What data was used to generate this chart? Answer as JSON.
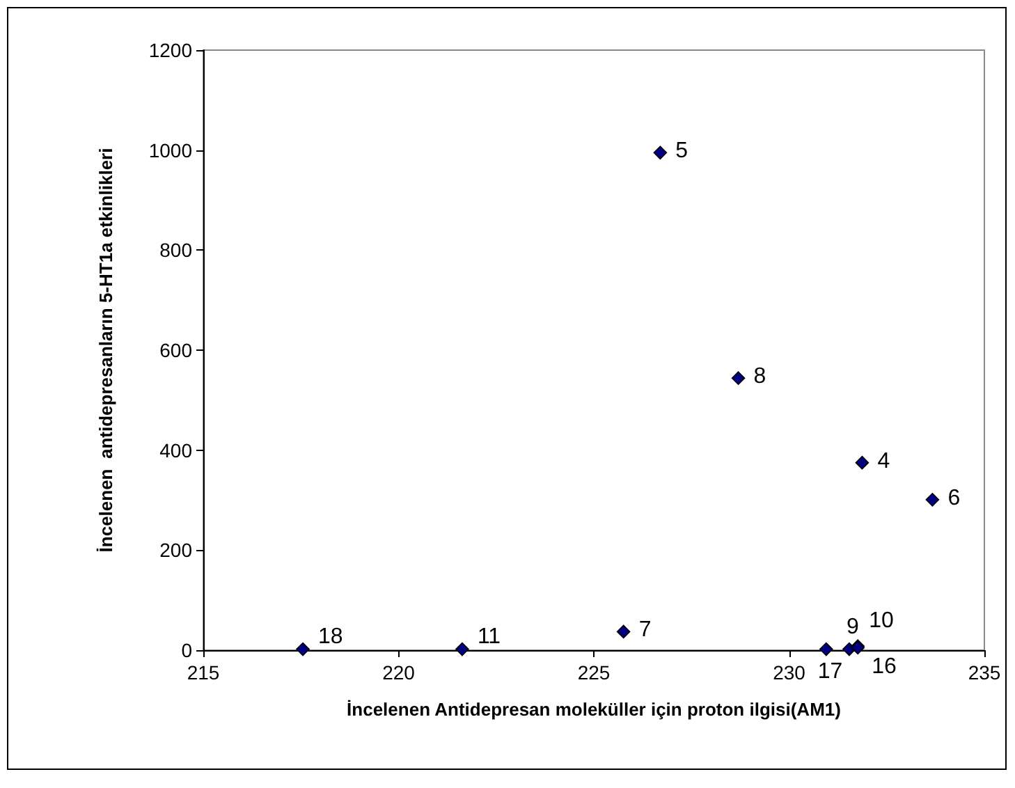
{
  "chart_data": {
    "type": "scatter",
    "xlabel": "İncelenen Antidepresan moleküller için proton ilgisi(AM1)",
    "ylabel": "İncelenen  antidepresanların 5-HT1a etkinlikleri",
    "x": [
      217.55,
      221.63,
      225.76,
      226.7,
      228.7,
      230.95,
      231.54,
      231.76,
      231.76,
      231.87,
      233.67
    ],
    "series": [
      {
        "color": "#000080",
        "values": [
          2,
          2,
          37,
          995,
          544,
          2,
          2,
          8,
          5,
          375,
          301
        ]
      }
    ],
    "annotations": [
      {
        "text": "18",
        "x": 217.55,
        "y": 2
      },
      {
        "text": "11",
        "x": 221.63,
        "y": 2
      },
      {
        "text": "7",
        "x": 225.76,
        "y": 37
      },
      {
        "text": "5",
        "x": 226.7,
        "y": 995
      },
      {
        "text": "8",
        "x": 228.7,
        "y": 544
      },
      {
        "text": "17",
        "x": 230.95,
        "y": 2
      },
      {
        "text": "9",
        "x": 231.54,
        "y": 2
      },
      {
        "text": "10",
        "x": 231.76,
        "y": 8
      },
      {
        "text": "16",
        "x": 231.76,
        "y": 5
      },
      {
        "text": "4",
        "x": 231.87,
        "y": 375
      },
      {
        "text": "6",
        "x": 233.67,
        "y": 301
      }
    ],
    "xlim": [
      215,
      235
    ],
    "xticks": [
      215,
      220,
      225,
      230,
      235
    ],
    "ylim": [
      0,
      1200
    ],
    "yticks": [
      0,
      200,
      400,
      600,
      800,
      1000,
      1200
    ],
    "grid": false,
    "marker": "diamond"
  }
}
